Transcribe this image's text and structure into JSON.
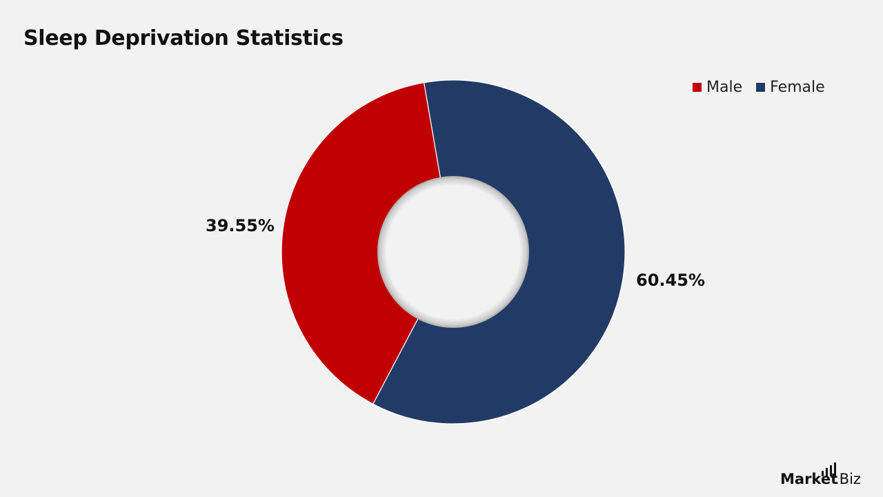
{
  "page": {
    "title": "Sleep Deprivation Statistics"
  },
  "chart_data": {
    "type": "pie",
    "donut": true,
    "title": "Sleep Deprivation Statistics",
    "categories": [
      "Male",
      "Female"
    ],
    "values": [
      39.55,
      60.45
    ],
    "labels": [
      "39.55%",
      "60.45%"
    ],
    "colors": [
      "#c00000",
      "#223a66"
    ],
    "legend_position": "top-right",
    "grid": false
  },
  "logo": {
    "text": "Market.Biz"
  }
}
